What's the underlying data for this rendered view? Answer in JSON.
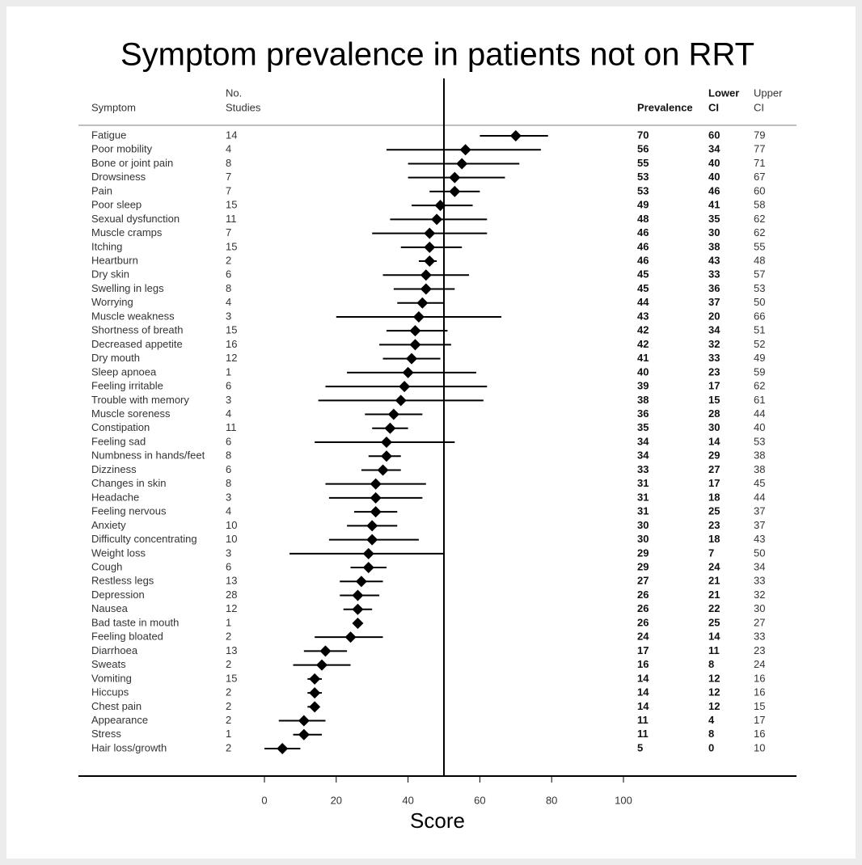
{
  "chart_data": {
    "type": "forest",
    "title": "Symptom prevalence in patients not on RRT",
    "xlabel": "Score",
    "column_headers": [
      [
        "Symptom"
      ],
      [
        "No.",
        "Studies"
      ],
      [
        "Prevalence"
      ],
      [
        "Lower",
        "CI"
      ],
      [
        "Upper",
        "CI"
      ]
    ],
    "categories": [
      "Fatigue",
      "Poor mobility",
      "Bone or joint pain",
      "Drowsiness",
      "Pain",
      "Poor sleep",
      "Sexual dysfunction",
      "Muscle cramps",
      "Itching",
      "Heartburn",
      "Dry skin",
      "Swelling in legs",
      "Worrying",
      "Muscle weakness",
      "Shortness of breath",
      "Decreased appetite",
      "Dry mouth",
      "Sleep apnoea",
      "Feeling irritable",
      "Trouble with memory",
      "Muscle soreness",
      "Constipation",
      "Feeling sad",
      "Numbness in hands/feet",
      "Dizziness",
      "Changes in skin",
      "Headache",
      "Feeling nervous",
      "Anxiety",
      "Difficulty concentrating",
      "Weight loss",
      "Cough",
      "Restless legs",
      "Depression",
      "Nausea",
      "Bad taste in mouth",
      "Feeling bloated",
      "Diarrhoea",
      "Sweats",
      "Vomiting",
      "Hiccups",
      "Chest pain",
      "Appearance",
      "Stress",
      "Hair loss/growth"
    ],
    "studies": [
      14,
      4,
      8,
      7,
      7,
      15,
      11,
      7,
      15,
      2,
      6,
      8,
      4,
      3,
      15,
      16,
      12,
      1,
      6,
      3,
      4,
      11,
      6,
      8,
      6,
      8,
      3,
      4,
      10,
      10,
      3,
      6,
      13,
      28,
      12,
      1,
      2,
      13,
      2,
      15,
      2,
      2,
      2,
      1,
      2
    ],
    "values": [
      70,
      56,
      55,
      53,
      53,
      49,
      48,
      46,
      46,
      46,
      45,
      45,
      44,
      43,
      42,
      42,
      41,
      40,
      39,
      38,
      36,
      35,
      34,
      34,
      33,
      31,
      31,
      31,
      30,
      30,
      29,
      29,
      27,
      26,
      26,
      26,
      24,
      17,
      16,
      14,
      14,
      14,
      11,
      11,
      5
    ],
    "lower": [
      60,
      34,
      40,
      40,
      46,
      41,
      35,
      30,
      38,
      43,
      33,
      36,
      37,
      20,
      34,
      32,
      33,
      23,
      17,
      15,
      28,
      30,
      14,
      29,
      27,
      17,
      18,
      25,
      23,
      18,
      7,
      24,
      21,
      21,
      22,
      25,
      14,
      11,
      8,
      12,
      12,
      12,
      4,
      8,
      0
    ],
    "upper": [
      79,
      77,
      71,
      67,
      60,
      58,
      62,
      62,
      55,
      48,
      57,
      53,
      50,
      66,
      51,
      52,
      49,
      59,
      62,
      61,
      44,
      40,
      53,
      38,
      38,
      45,
      44,
      37,
      37,
      43,
      50,
      34,
      33,
      32,
      30,
      27,
      33,
      23,
      24,
      16,
      16,
      15,
      17,
      16,
      10
    ],
    "reference_line": 50,
    "color": "#000000",
    "xlim": [
      0,
      100
    ],
    "xticks": [
      0,
      20,
      40,
      60,
      80,
      100
    ]
  }
}
